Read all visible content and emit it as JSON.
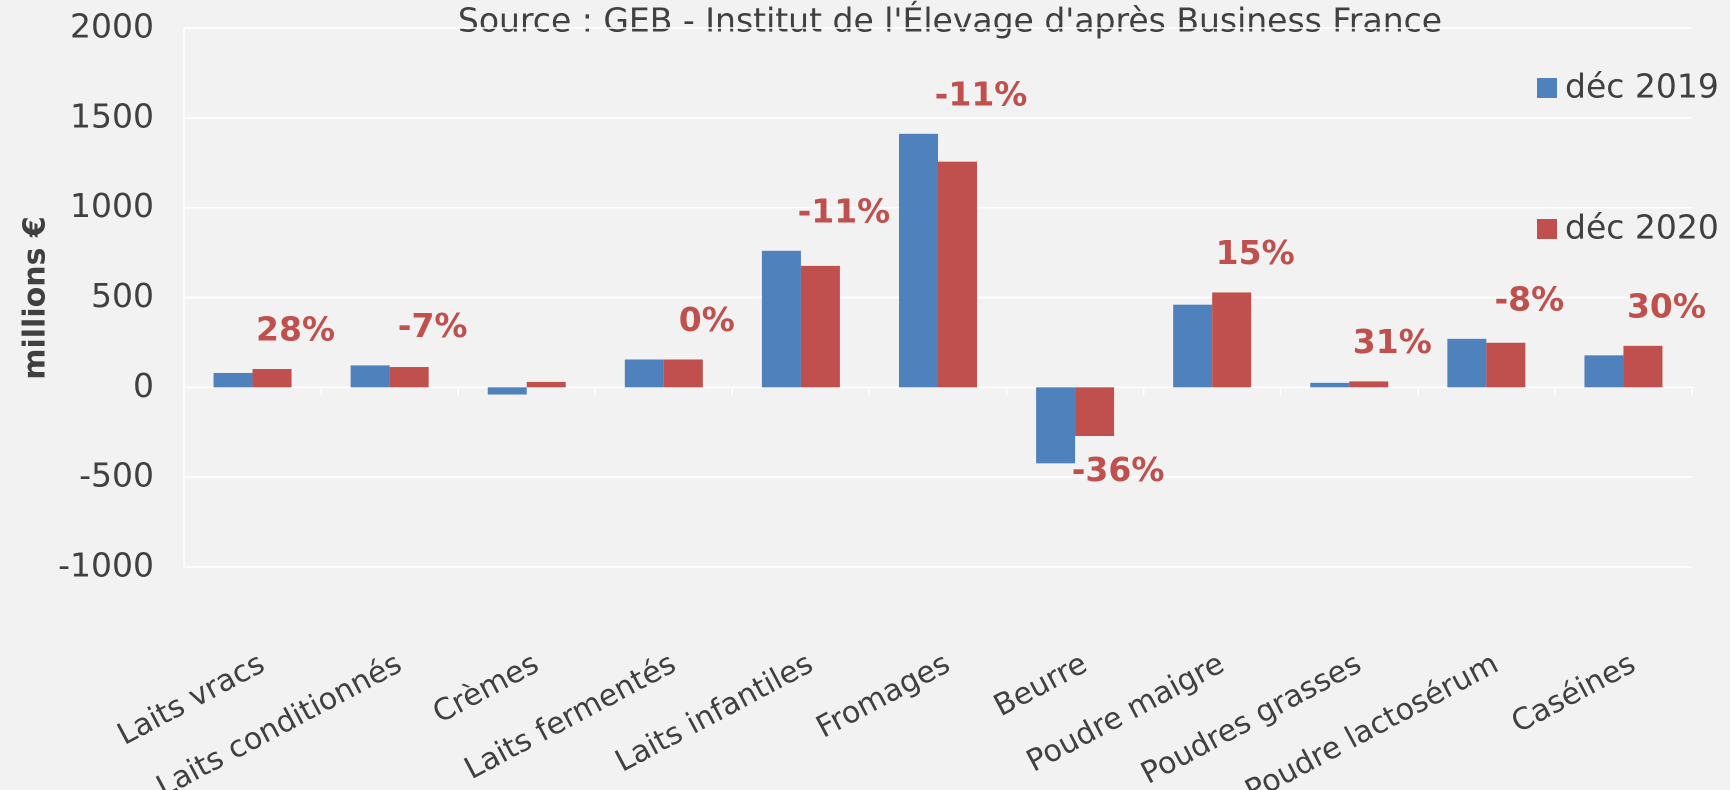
{
  "chart_data": {
    "type": "bar",
    "title": "Source : GEB - Institut de l'Élevage d'après Business France",
    "y_label": "millions €",
    "categories": [
      "Laits vracs",
      "Laits conditionnés",
      "Crèmes",
      "Laits fermentés",
      "Laits infantiles",
      "Fromages",
      "Beurre",
      "Poudre maigre",
      "Poudres grasses",
      "Poudre lactosérum",
      "Caséines"
    ],
    "series": [
      {
        "name": "déc 2019",
        "color": "#4f81bd",
        "values": [
          80,
          122,
          -40,
          155,
          760,
          1411,
          -423,
          460,
          25,
          270,
          178
        ]
      },
      {
        "name": "déc 2020",
        "color": "#c0504d",
        "values": [
          102,
          113,
          30,
          155,
          676,
          1256,
          -271,
          528,
          33,
          248,
          231
        ]
      }
    ],
    "change_labels": [
      "28%",
      "-7%",
      null,
      "0%",
      "-11%",
      "-11%",
      "-36%",
      "15%",
      "31%",
      "-8%",
      "30%"
    ],
    "change_color": "#c0504d",
    "ylim": [
      -1000,
      2000
    ],
    "yticks": [
      -1000,
      -500,
      0,
      500,
      1000,
      1500,
      2000
    ],
    "grid": true,
    "legend": "right"
  }
}
